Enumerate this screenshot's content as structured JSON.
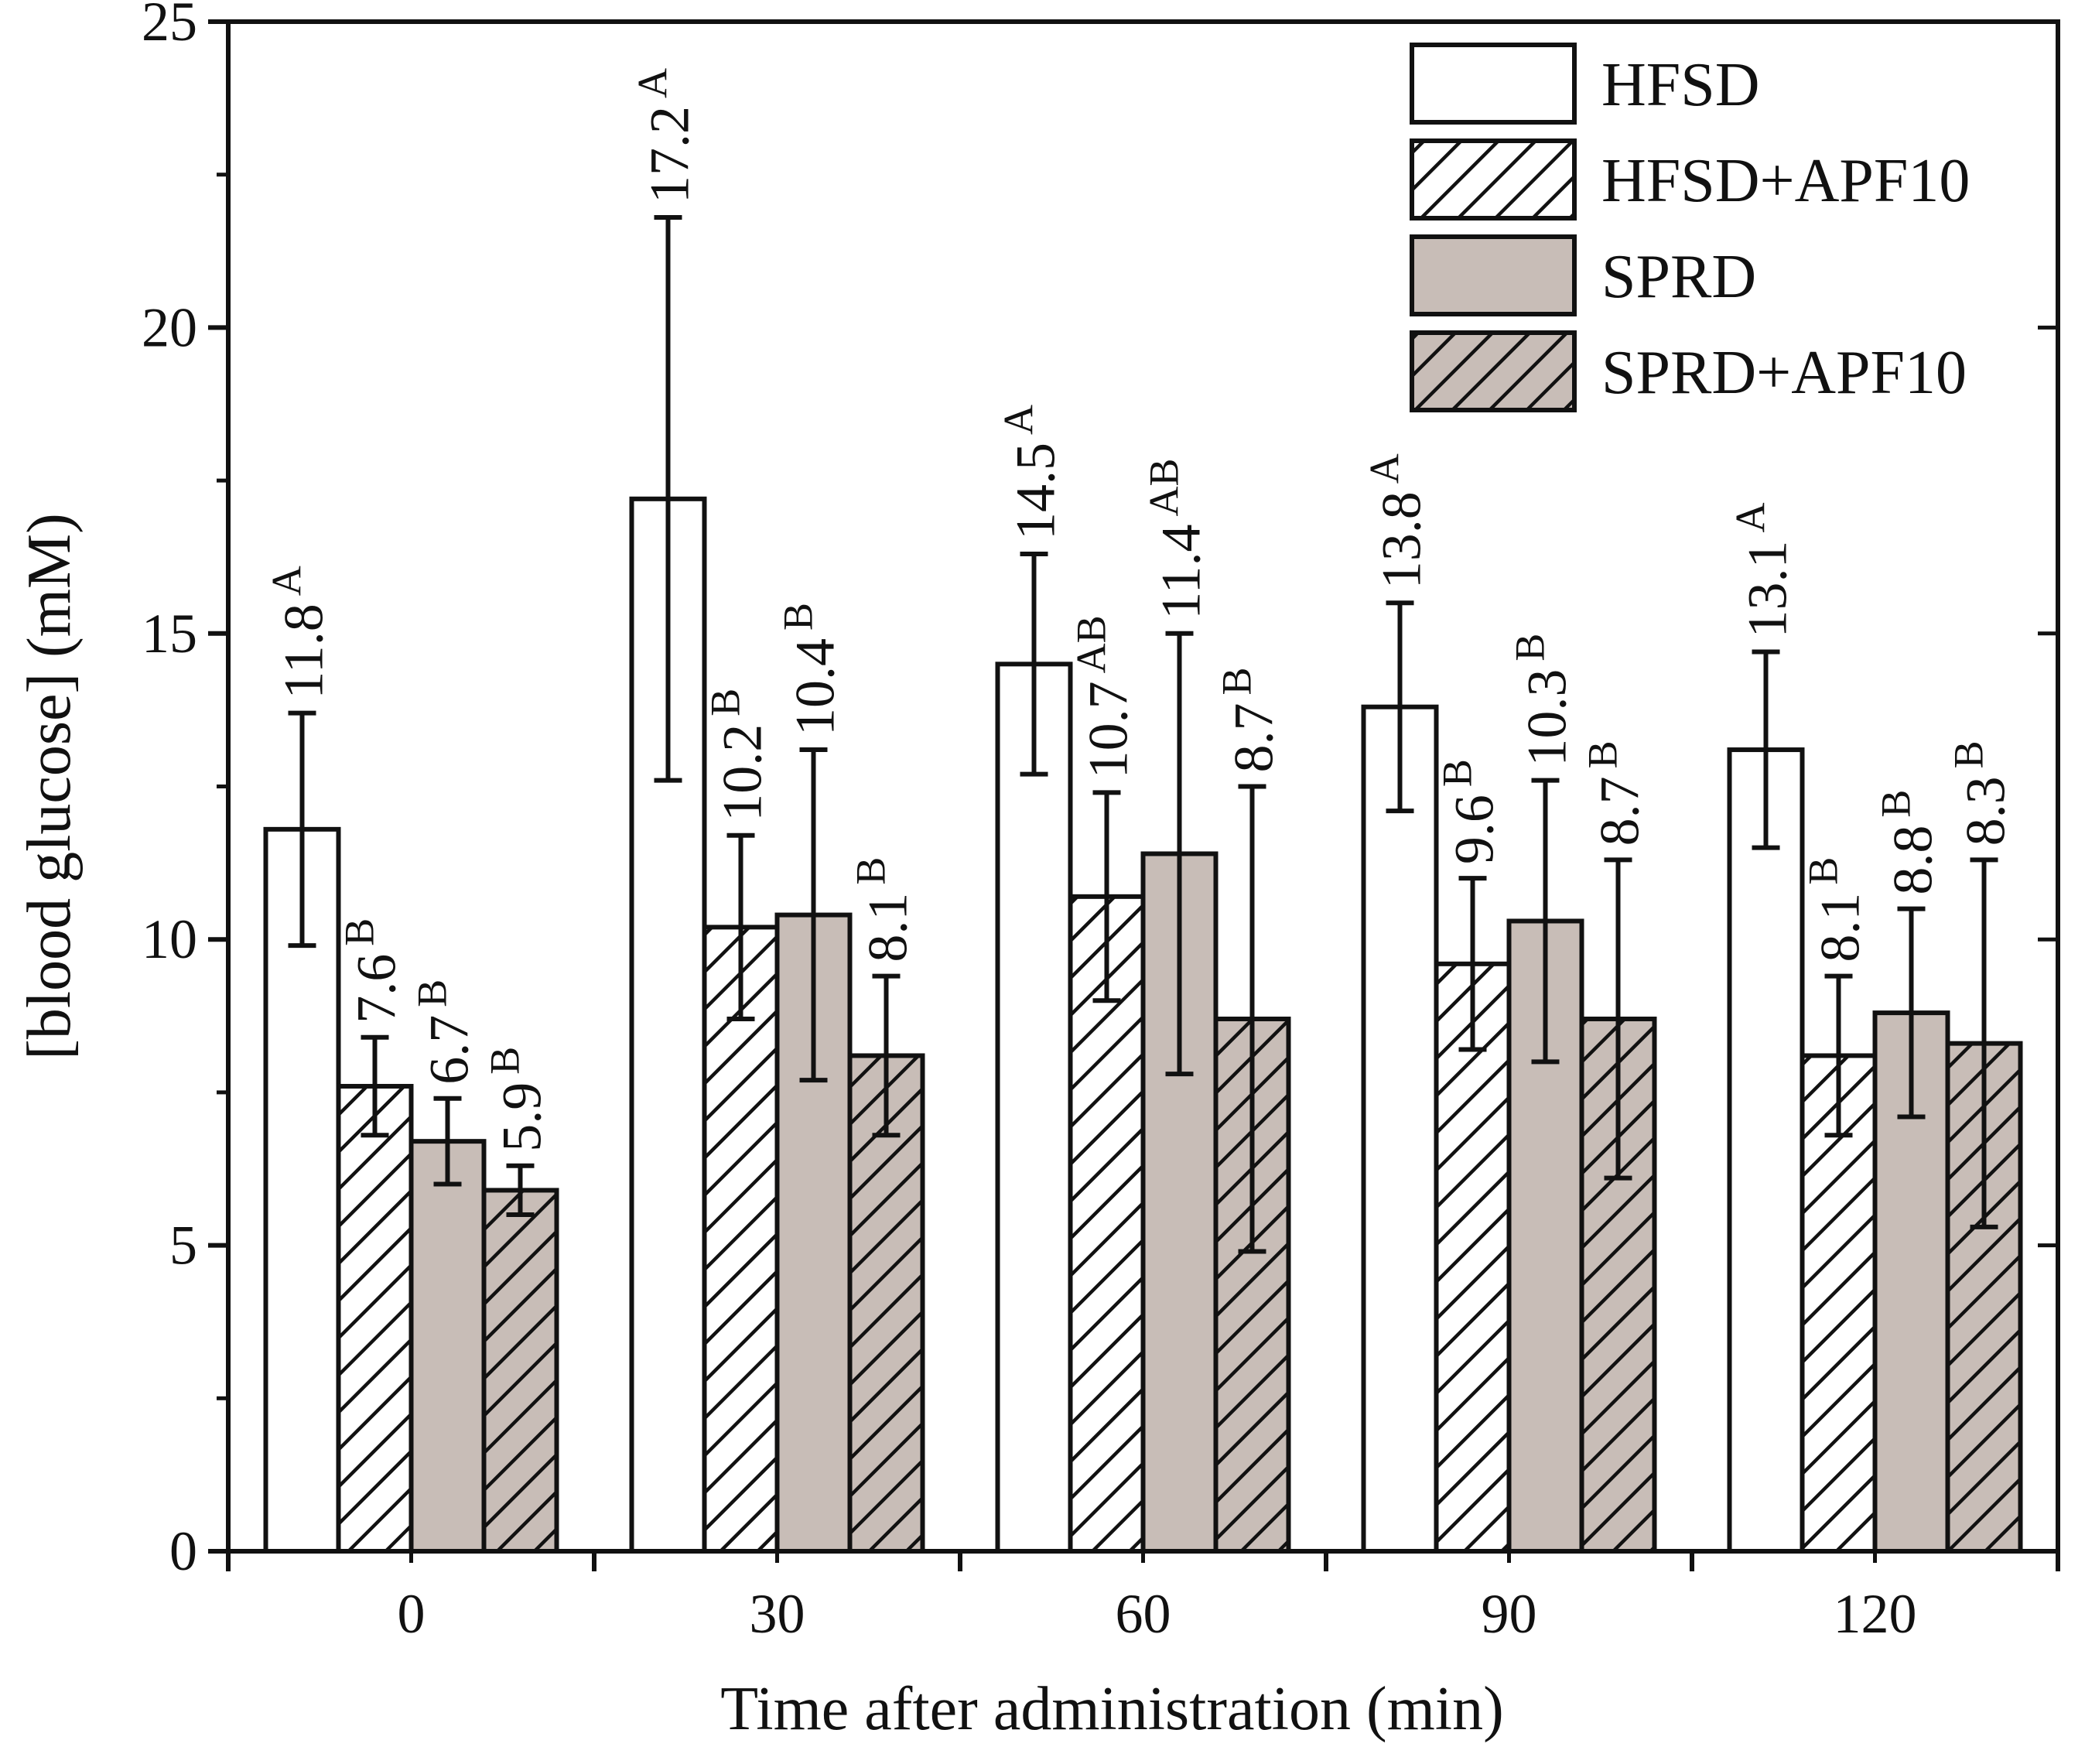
{
  "chart_data": {
    "type": "bar",
    "xlabel": "Time after administration (min)",
    "ylabel": "[blood glucose] (mM)",
    "ylim": [
      0,
      25
    ],
    "yticks": [
      "0",
      "5",
      "10",
      "15",
      "20",
      "25"
    ],
    "categories": [
      "0",
      "30",
      "60",
      "90",
      "120"
    ],
    "legend_position": "top-right",
    "series": [
      {
        "name": "HFSD",
        "style": "open",
        "values": [
          11.8,
          17.2,
          14.5,
          13.8,
          13.1
        ],
        "errors": [
          1.9,
          4.6,
          1.8,
          1.7,
          1.6
        ],
        "labels": [
          "11.8",
          "17.2",
          "14.5",
          "13.8",
          "13.1"
        ],
        "sig": [
          "A",
          "A",
          "A",
          "A",
          "A"
        ]
      },
      {
        "name": "HFSD+APF10",
        "style": "open-hatched",
        "values": [
          7.6,
          10.2,
          10.7,
          9.6,
          8.1
        ],
        "errors": [
          0.8,
          1.5,
          1.7,
          1.4,
          1.3
        ],
        "labels": [
          "7.6",
          "10.2",
          "10.7",
          "9.6",
          "8.1"
        ],
        "sig": [
          "B",
          "B",
          "AB",
          "B",
          "B"
        ]
      },
      {
        "name": "SPRD",
        "style": "gray",
        "values": [
          6.7,
          10.4,
          11.4,
          10.3,
          8.8
        ],
        "errors": [
          0.7,
          2.7,
          3.6,
          2.3,
          1.7
        ],
        "labels": [
          "6.7",
          "10.4",
          "11.4",
          "10.3",
          "8.8"
        ],
        "sig": [
          "B",
          "B",
          "AB",
          "B",
          "B"
        ]
      },
      {
        "name": "SPRD+APF10",
        "style": "gray-hatched",
        "values": [
          5.9,
          8.1,
          8.7,
          8.7,
          8.3
        ],
        "errors": [
          0.4,
          1.3,
          3.8,
          2.6,
          3.0
        ],
        "labels": [
          "5.9",
          "8.1",
          "8.7",
          "8.7",
          "8.3"
        ],
        "sig": [
          "B",
          "B",
          "B",
          "B",
          "B"
        ]
      }
    ],
    "colors": {
      "open": "#ffffff",
      "gray": "#c8bdb7",
      "stroke": "#111111"
    }
  }
}
